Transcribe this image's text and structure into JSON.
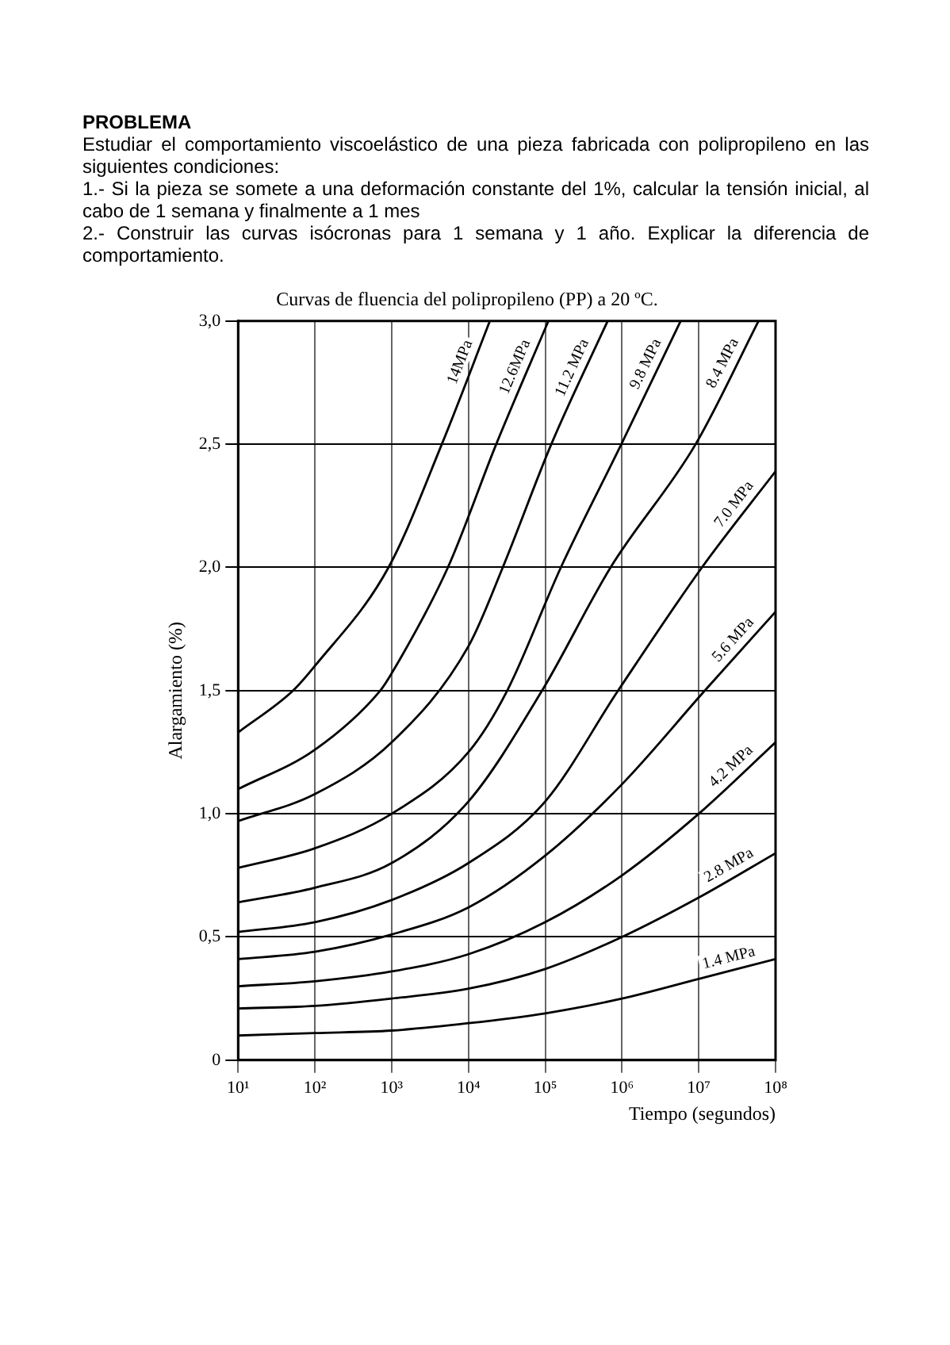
{
  "chart_data": {
    "type": "line",
    "title": "Curvas de fluencia del polipropileno (PP) a 20 ºC.",
    "xlabel": "Tiempo (segundos)",
    "ylabel": "Alargamiento (%)",
    "annotations": [
      "PROBLEMA",
      "Estudiar el comportamiento viscoelástico de una pieza fabricada con polipropileno en las siguientes condiciones:",
      "1.- Si la pieza se somete a una deformación constante del 1%, calcular la tensión inicial, al cabo de 1 semana y finalmente a 1 mes",
      "2.- Construir las curvas isócronas para 1 semana y 1 año. Explicar la diferencia de comportamiento."
    ],
    "log": "x",
    "grid": true,
    "legend": false,
    "marker": "none",
    "line_style": "solid",
    "xlim": [
      10,
      100000000
    ],
    "ylim": [
      0,
      3
    ],
    "xticks": [
      {
        "value": 10,
        "label": "10¹"
      },
      {
        "value": 100,
        "label": "10²"
      },
      {
        "value": 1000,
        "label": "10³"
      },
      {
        "value": 10000,
        "label": "10⁴"
      },
      {
        "value": 100000,
        "label": "10⁵"
      },
      {
        "value": 1000000,
        "label": "10⁶"
      },
      {
        "value": 10000000,
        "label": "10⁷"
      },
      {
        "value": 100000000,
        "label": "10⁸"
      }
    ],
    "yticks": [
      0,
      {
        "value": 0.5,
        "label": "0,5"
      },
      {
        "value": 1,
        "label": "1,0"
      },
      {
        "value": 1.5,
        "label": "1,5"
      },
      {
        "value": 2,
        "label": "2,0"
      },
      {
        "value": 2.5,
        "label": "2,5"
      },
      {
        "value": 3,
        "label": "3,0"
      }
    ],
    "series": [
      {
        "name": "14MPa",
        "color": "#000000",
        "x": [
          10,
          52,
          100,
          910,
          4500,
          19000
        ],
        "values": [
          1.33,
          1.5,
          1.6,
          2.0,
          2.5,
          3.0
        ]
      },
      {
        "name": "12.6MPa",
        "color": "#000000",
        "x": [
          10,
          100,
          710,
          1000,
          5400,
          23000,
          110000
        ],
        "values": [
          1.1,
          1.26,
          1.5,
          1.57,
          2.0,
          2.5,
          3.0
        ]
      },
      {
        "name": "11.2 MPa",
        "color": "#000000",
        "x": [
          10,
          100,
          1000,
          10000,
          28000,
          120000,
          650000
        ],
        "values": [
          0.97,
          1.08,
          1.29,
          1.68,
          2.0,
          2.5,
          3.0
        ]
      },
      {
        "name": "9.8 MPa",
        "color": "#000000",
        "x": [
          10,
          100,
          1000,
          10000,
          32000,
          160000,
          980000,
          5800000
        ],
        "values": [
          0.78,
          0.86,
          1.0,
          1.25,
          1.5,
          2.0,
          2.5,
          3.0
        ]
      },
      {
        "name": "8.4 MPa",
        "color": "#000000",
        "x": [
          10,
          100,
          1000,
          10000,
          91000,
          710000,
          9100000,
          60000000
        ],
        "values": [
          0.64,
          0.7,
          0.8,
          1.05,
          1.5,
          2.0,
          2.5,
          3.0
        ]
      },
      {
        "name": "7.0 MPa",
        "color": "#000000",
        "x": [
          10,
          100,
          1000,
          10000,
          100000,
          890000,
          11000000,
          100000000
        ],
        "values": [
          0.52,
          0.56,
          0.65,
          0.8,
          1.05,
          1.5,
          2.0,
          2.39
        ]
      },
      {
        "name": "5.6 MPa",
        "color": "#000000",
        "x": [
          10,
          100,
          1000,
          10000,
          100000,
          1000000,
          12000000,
          100000000
        ],
        "values": [
          0.41,
          0.44,
          0.51,
          0.62,
          0.83,
          1.12,
          1.5,
          1.82
        ]
      },
      {
        "name": "4.2 MPa",
        "color": "#000000",
        "x": [
          10,
          100,
          1000,
          10000,
          100000,
          1000000,
          10000000,
          100000000
        ],
        "values": [
          0.3,
          0.32,
          0.36,
          0.43,
          0.56,
          0.75,
          1.0,
          1.29
        ]
      },
      {
        "name": "2.8 MPa",
        "color": "#000000",
        "x": [
          10,
          100,
          1000,
          10000,
          100000,
          1000000,
          10000000,
          100000000
        ],
        "values": [
          0.21,
          0.22,
          0.25,
          0.29,
          0.37,
          0.5,
          0.66,
          0.84
        ]
      },
      {
        "name": "1.4 MPa",
        "color": "#000000",
        "x": [
          10,
          100,
          1000,
          10000,
          100000,
          1000000,
          10000000,
          100000000
        ],
        "values": [
          0.1,
          0.11,
          0.12,
          0.15,
          0.19,
          0.25,
          0.33,
          0.41
        ]
      }
    ]
  }
}
